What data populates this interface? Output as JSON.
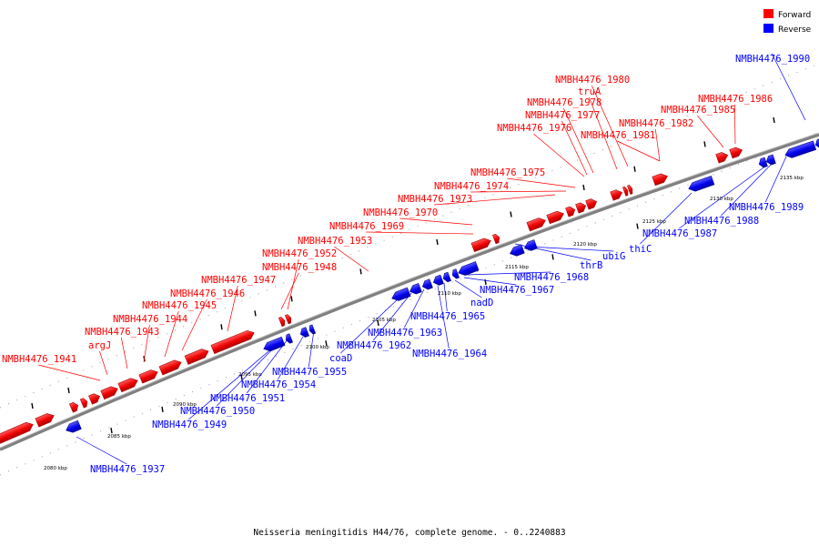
{
  "legend": [
    {
      "label": "Forward",
      "color": "#ff0000"
    },
    {
      "label": "Reverse",
      "color": "#0000ff"
    }
  ],
  "caption": "Neisseria meningitidis H44/76, complete genome. - 0..2240883",
  "colors": {
    "forward": "#ff0000",
    "reverse": "#0000ff",
    "backbone": "#808080",
    "forward_edge": "#aa0000",
    "reverse_edge": "#00008b"
  },
  "tick_labels": [
    "2080 kbp",
    "2085 kbp",
    "2090 kbp",
    "2095 kbp",
    "2100 kbp",
    "2105 kbp",
    "2110 kbp",
    "2115 kbp",
    "2120 kbp",
    "2125 kbp",
    "2130 kbp",
    "2135 kbp"
  ],
  "forward_labels": [
    "NMBH4476_1941",
    "argJ",
    "NMBH4476_1943",
    "NMBH4476_1944",
    "NMBH4476_1945",
    "NMBH4476_1946",
    "NMBH4476_1947",
    "NMBH4476_1948",
    "NMBH4476_1952",
    "NMBH4476_1953",
    "NMBH4476_1969",
    "NMBH4476_1970",
    "NMBH4476_1973",
    "NMBH4476_1974",
    "NMBH4476_1975",
    "NMBH4476_1976",
    "NMBH4476_1977",
    "NMBH4476_1978",
    "truA",
    "NMBH4476_1980",
    "NMBH4476_1981",
    "NMBH4476_1982",
    "NMBH4476_1985",
    "NMBH4476_1986"
  ],
  "reverse_labels": [
    "NMBH4476_1937",
    "NMBH4476_1949",
    "NMBH4476_1950",
    "NMBH4476_1951",
    "NMBH4476_1954",
    "NMBH4476_1955",
    "coaD",
    "NMBH4476_1962",
    "NMBH4476_1963",
    "NMBH4476_1964",
    "NMBH4476_1965",
    "nadD",
    "NMBH4476_1967",
    "NMBH4476_1968",
    "thrB",
    "ubiG",
    "thiC",
    "NMBH4476_1987",
    "NMBH4476_1988",
    "NMBH4476_1989",
    "NMBH4476_1990"
  ]
}
